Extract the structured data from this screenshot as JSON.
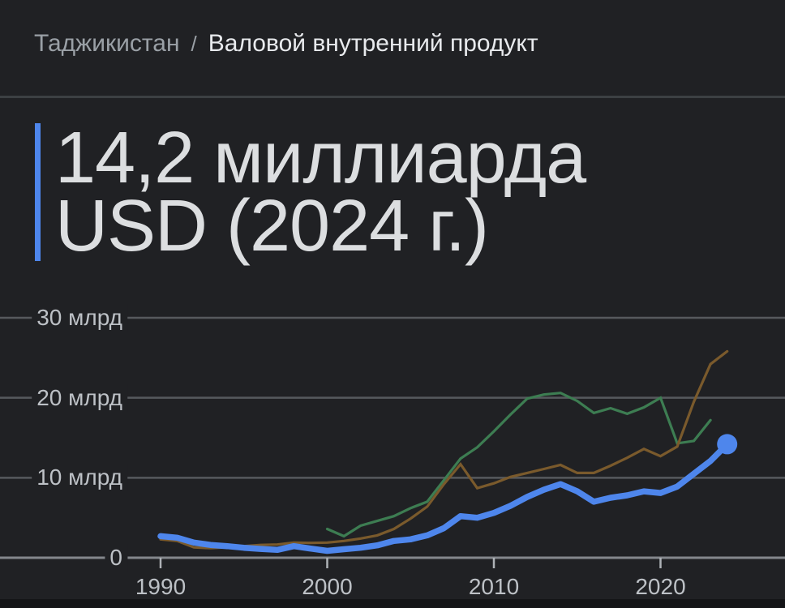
{
  "breadcrumb": {
    "country": "Таджикистан",
    "separator": "/",
    "metric": "Валовой внутренний продукт"
  },
  "stat": {
    "line1": "14,2 миллиарда",
    "line2": "USD (2024 г.)",
    "accent_color": "#4e86ec"
  },
  "colors": {
    "background": "#202124",
    "divider": "#3c4043",
    "grid": "#56595d",
    "baseline": "#84878c",
    "tick": "#aeb2b7",
    "axis_label": "#bdc1c6"
  },
  "chart_data": {
    "type": "line",
    "title": "",
    "xlabel": "",
    "ylabel": "",
    "unit": "млрд USD",
    "ylim": [
      0,
      30
    ],
    "x_range": [
      1990,
      2024
    ],
    "grid": true,
    "legend_position": "none-visible",
    "y_ticks": [
      {
        "v": 0,
        "label": "0"
      },
      {
        "v": 10,
        "label": "10 млрд"
      },
      {
        "v": 20,
        "label": "20 млрд"
      },
      {
        "v": 30,
        "label": "30 млрд"
      }
    ],
    "x_ticks": [
      {
        "year": 1990,
        "label": "1990"
      },
      {
        "year": 2000,
        "label": "2000"
      },
      {
        "year": 2010,
        "label": "2010"
      },
      {
        "year": 2020,
        "label": "2020"
      }
    ],
    "series": [
      {
        "name": "unlabeled-green",
        "color": "#3d7d52",
        "stroke_width": 3.2,
        "end_dot": false,
        "start_year": 2000,
        "values": [
          3.6,
          2.7,
          4.0,
          4.6,
          5.2,
          6.2,
          7.0,
          9.7,
          12.4,
          13.8,
          15.8,
          17.9,
          19.9,
          20.4,
          20.6,
          19.6,
          18.1,
          18.7,
          18.0,
          18.8,
          20.0,
          14.3,
          14.6,
          17.2
        ]
      },
      {
        "name": "unlabeled-brown",
        "color": "#7a5a2c",
        "stroke_width": 3.2,
        "end_dot": false,
        "start_year": 1990,
        "values": [
          2.3,
          2.1,
          1.3,
          1.2,
          1.3,
          1.45,
          1.6,
          1.65,
          1.9,
          1.85,
          1.9,
          2.1,
          2.4,
          2.8,
          3.6,
          4.9,
          6.4,
          9.2,
          11.7,
          8.7,
          9.3,
          10.1,
          10.6,
          11.1,
          11.6,
          10.6,
          10.6,
          11.5,
          12.5,
          13.6,
          12.7,
          13.9,
          19.5,
          24.2,
          25.8
        ]
      },
      {
        "name": "Таджикистан",
        "color": "#4e86ec",
        "stroke_width": 7.5,
        "end_dot": true,
        "start_year": 1990,
        "values": [
          2.7,
          2.5,
          1.9,
          1.6,
          1.45,
          1.25,
          1.1,
          0.98,
          1.45,
          1.15,
          0.86,
          1.06,
          1.25,
          1.55,
          2.1,
          2.3,
          2.8,
          3.7,
          5.2,
          5.0,
          5.6,
          6.5,
          7.6,
          8.5,
          9.2,
          8.3,
          7.0,
          7.5,
          7.8,
          8.3,
          8.1,
          8.9,
          10.5,
          12.1,
          14.2
        ]
      }
    ]
  }
}
